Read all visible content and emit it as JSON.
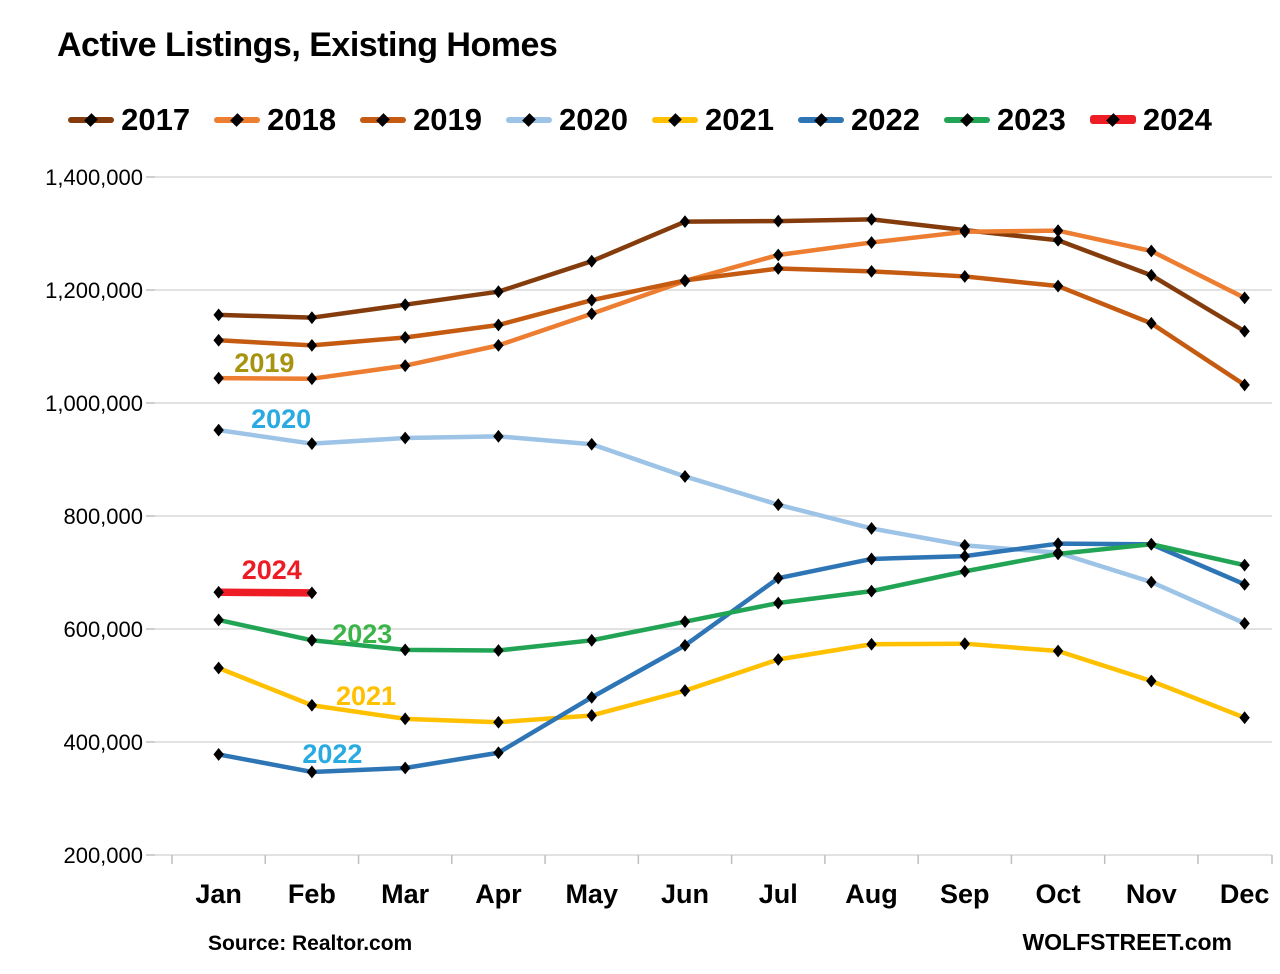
{
  "title": "Active Listings, Existing Homes",
  "source_note": "Source: Realtor.com",
  "branding": "WOLFSTREET.com",
  "colors": {
    "gridline": "#D9D9D9",
    "axis_tick": "#BFBFBF",
    "text": "#000000",
    "background": "#FFFFFF"
  },
  "chart_data": {
    "type": "line",
    "title": "Active Listings, Existing Homes",
    "categories": [
      "Jan",
      "Feb",
      "Mar",
      "Apr",
      "May",
      "Jun",
      "Jul",
      "Aug",
      "Sep",
      "Oct",
      "Nov",
      "Dec"
    ],
    "series": [
      {
        "name": "2017",
        "color": "#843C0C",
        "line_width": 4.5,
        "values": [
          1156000,
          1151000,
          1174000,
          1197000,
          1251000,
          1321000,
          1322000,
          1325000,
          1306000,
          1288000,
          1226000,
          1127000
        ]
      },
      {
        "name": "2018",
        "color": "#ED7D31",
        "line_width": 4.5,
        "values": [
          1044000,
          1043000,
          1066000,
          1102000,
          1158000,
          1216000,
          1262000,
          1284000,
          1303000,
          1305000,
          1269000,
          1186000
        ]
      },
      {
        "name": "2019",
        "color": "#C55A11",
        "line_width": 4.5,
        "values": [
          1111000,
          1102000,
          1116000,
          1138000,
          1182000,
          1217000,
          1238000,
          1233000,
          1224000,
          1207000,
          1141000,
          1032000
        ]
      },
      {
        "name": "2020",
        "color": "#9DC3E6",
        "line_width": 4.5,
        "values": [
          952000,
          928000,
          938000,
          941000,
          927000,
          870000,
          820000,
          778000,
          748000,
          735000,
          683000,
          610000
        ]
      },
      {
        "name": "2021",
        "color": "#FFC000",
        "line_width": 4.5,
        "values": [
          531000,
          465000,
          441000,
          435000,
          447000,
          491000,
          546000,
          573000,
          574000,
          561000,
          508000,
          443000
        ]
      },
      {
        "name": "2022",
        "color": "#2E75B6",
        "line_width": 4.5,
        "values": [
          378000,
          347000,
          354000,
          381000,
          479000,
          571000,
          690000,
          724000,
          729000,
          751000,
          750000,
          679000
        ]
      },
      {
        "name": "2023",
        "color": "#22A455",
        "line_width": 4.5,
        "values": [
          616000,
          580000,
          563000,
          562000,
          580000,
          613000,
          646000,
          667000,
          702000,
          733000,
          750000,
          713000
        ]
      },
      {
        "name": "2024",
        "color": "#EE1C25",
        "line_width": 7.5,
        "values": [
          665000,
          664000
        ]
      }
    ],
    "ylim": [
      200000,
      1400000
    ],
    "ytick_step": 200000,
    "ytick_labels": [
      "200,000",
      "400,000",
      "600,000",
      "800,000",
      "1,000,000",
      "1,200,000",
      "1,400,000"
    ],
    "grid": true,
    "legend_position": "top",
    "marker": "diamond",
    "marker_color": "#000000",
    "annotations": [
      {
        "text": "2019",
        "color": "#A6930E",
        "month_index": 0.49,
        "value": 1071000
      },
      {
        "text": "2020",
        "color": "#29ABE2",
        "month_index": 0.67,
        "value": 972000
      },
      {
        "text": "2024",
        "color": "#ED1C24",
        "month_index": 0.57,
        "value": 704000
      },
      {
        "text": "2023",
        "color": "#3BB54A",
        "month_index": 1.54,
        "value": 591000
      },
      {
        "text": "2021",
        "color": "#FFC000",
        "month_index": 1.58,
        "value": 481000
      },
      {
        "text": "2022",
        "color": "#29ABE2",
        "month_index": 1.22,
        "value": 379000
      }
    ]
  }
}
